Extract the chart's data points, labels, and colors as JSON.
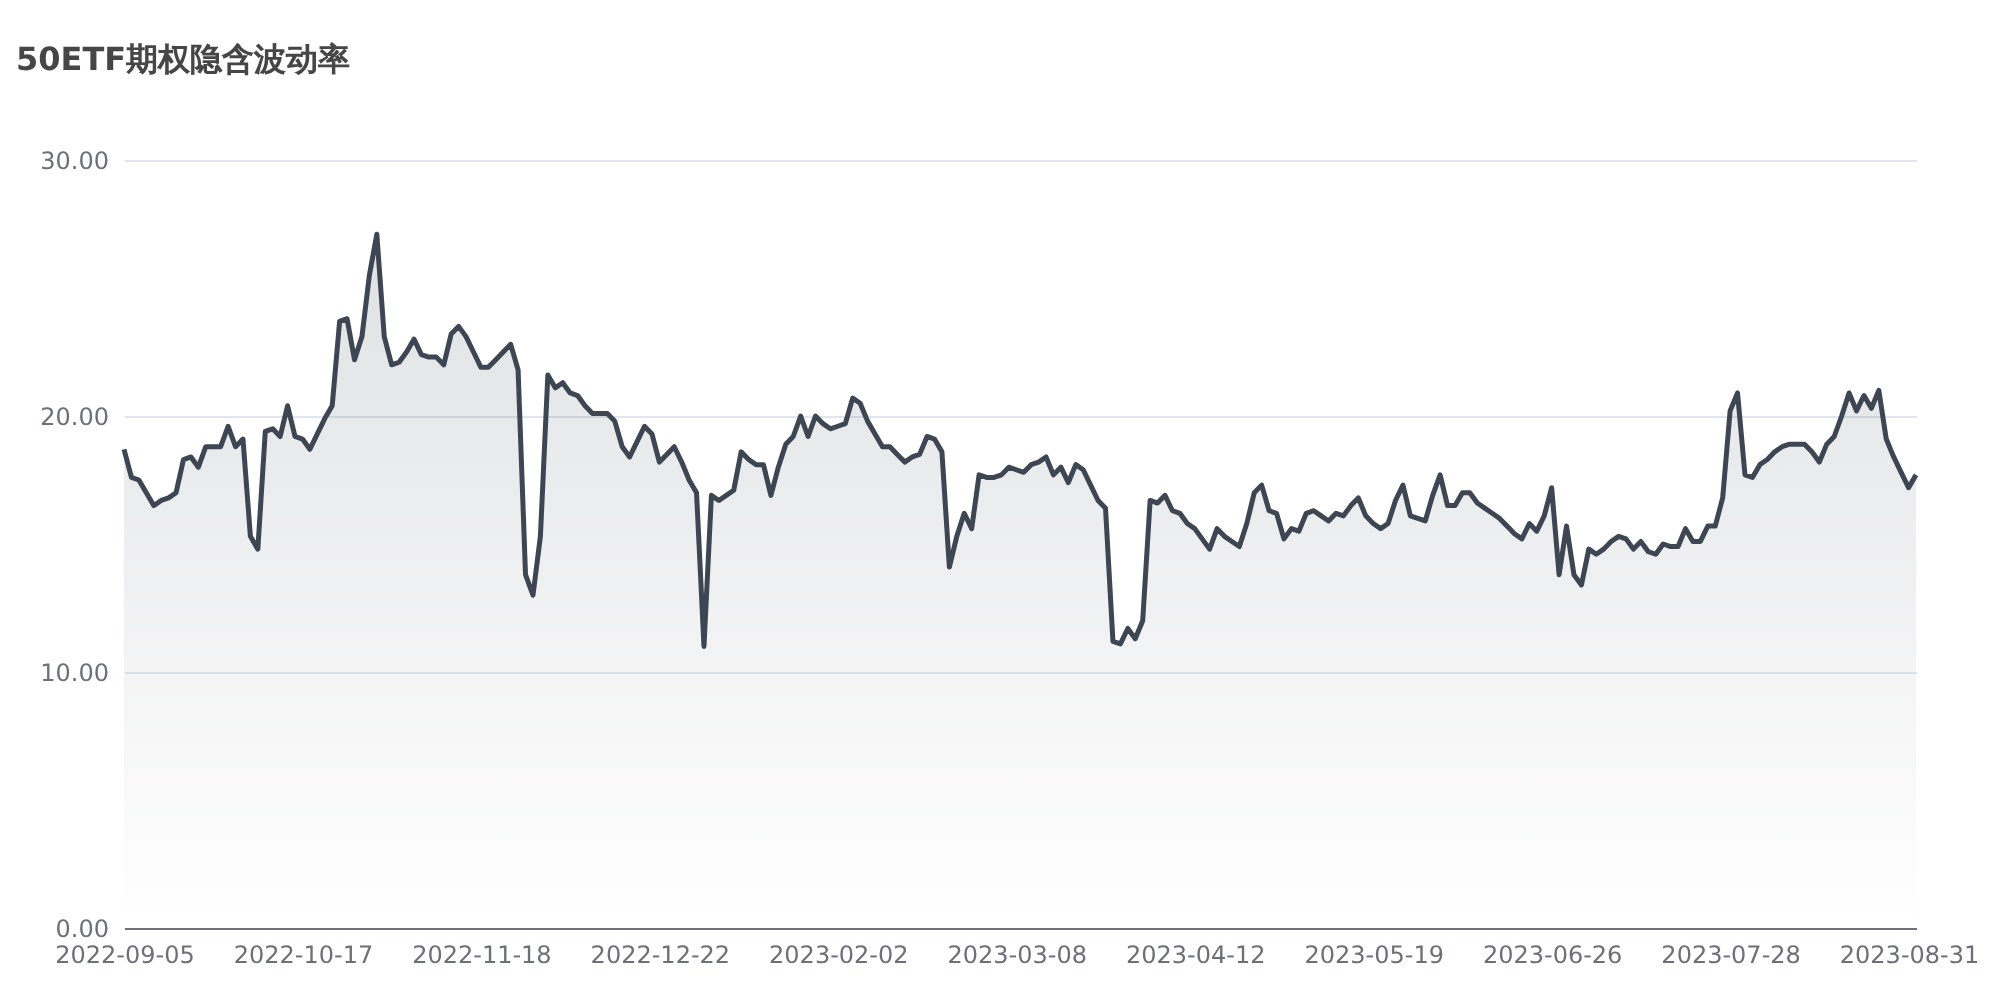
{
  "chart_data": {
    "type": "area",
    "title": "50ETF期权隐含波动率",
    "categories": [
      "2022-09-05",
      null,
      null,
      null,
      null,
      null,
      null,
      null,
      null,
      null,
      null,
      null,
      null,
      null,
      null,
      null,
      null,
      null,
      null,
      null,
      null,
      null,
      null,
      null,
      "2022-10-17",
      null,
      null,
      null,
      null,
      null,
      null,
      null,
      null,
      null,
      null,
      null,
      null,
      null,
      null,
      null,
      null,
      null,
      null,
      null,
      null,
      null,
      null,
      null,
      "2022-11-18",
      null,
      null,
      null,
      null,
      null,
      null,
      null,
      null,
      null,
      null,
      null,
      null,
      null,
      null,
      null,
      null,
      null,
      null,
      null,
      null,
      null,
      null,
      null,
      "2022-12-22",
      null,
      null,
      null,
      null,
      null,
      null,
      null,
      null,
      null,
      null,
      null,
      null,
      null,
      null,
      null,
      null,
      null,
      null,
      null,
      null,
      null,
      null,
      null,
      "2023-02-02",
      null,
      null,
      null,
      null,
      null,
      null,
      null,
      null,
      null,
      null,
      null,
      null,
      null,
      null,
      null,
      null,
      null,
      null,
      null,
      null,
      null,
      null,
      null,
      "2023-03-08",
      null,
      null,
      null,
      null,
      null,
      null,
      null,
      null,
      null,
      null,
      null,
      null,
      null,
      null,
      null,
      null,
      null,
      null,
      null,
      null,
      null,
      null,
      null,
      "2023-04-12",
      null,
      null,
      null,
      null,
      null,
      null,
      null,
      null,
      null,
      null,
      null,
      null,
      null,
      null,
      null,
      null,
      null,
      null,
      null,
      null,
      null,
      null,
      null,
      "2023-05-19",
      null,
      null,
      null,
      null,
      null,
      null,
      null,
      null,
      null,
      null,
      null,
      null,
      null,
      null,
      null,
      null,
      null,
      null,
      null,
      null,
      null,
      null,
      null,
      "2023-06-26",
      null,
      null,
      null,
      null,
      null,
      null,
      null,
      null,
      null,
      null,
      null,
      null,
      null,
      null,
      null,
      null,
      null,
      null,
      null,
      null,
      null,
      null,
      null,
      "2023-07-28",
      null,
      null,
      null,
      null,
      null,
      null,
      null,
      null,
      null,
      null,
      null,
      null,
      null,
      null,
      null,
      null,
      null,
      null,
      null,
      null,
      null,
      null,
      null,
      "2023-08-31",
      null
    ],
    "series": [
      {
        "color": "#3d4652",
        "values": [
          18.7,
          17.6,
          17.5,
          17.0,
          16.5,
          16.7,
          16.8,
          17.0,
          18.3,
          18.4,
          18.0,
          18.8,
          18.8,
          18.8,
          19.6,
          18.8,
          19.1,
          15.3,
          14.8,
          19.4,
          19.5,
          19.2,
          20.4,
          19.2,
          19.1,
          18.7,
          19.3,
          19.9,
          20.4,
          23.7,
          23.8,
          22.2,
          23.1,
          25.5,
          27.1,
          23.1,
          22.0,
          22.1,
          22.5,
          23.0,
          22.4,
          22.3,
          22.3,
          22.0,
          23.2,
          23.5,
          23.1,
          22.5,
          21.9,
          21.9,
          22.2,
          22.5,
          22.8,
          21.8,
          13.8,
          13.0,
          15.3,
          21.6,
          21.1,
          21.3,
          20.9,
          20.8,
          20.4,
          20.1,
          20.1,
          20.1,
          19.8,
          18.8,
          18.4,
          19.0,
          19.6,
          19.3,
          18.2,
          18.5,
          18.8,
          18.2,
          17.5,
          17.0,
          11.0,
          16.9,
          16.7,
          16.9,
          17.1,
          18.6,
          18.3,
          18.1,
          18.1,
          16.9,
          18.0,
          18.9,
          19.2,
          20.0,
          19.2,
          20.0,
          19.7,
          19.5,
          19.6,
          19.7,
          20.7,
          20.5,
          19.8,
          19.3,
          18.8,
          18.8,
          18.5,
          18.2,
          18.4,
          18.5,
          19.2,
          19.1,
          18.6,
          14.1,
          15.3,
          16.2,
          15.6,
          17.7,
          17.6,
          17.6,
          17.7,
          18.0,
          17.9,
          17.8,
          18.1,
          18.2,
          18.4,
          17.7,
          18.0,
          17.4,
          18.1,
          17.9,
          17.3,
          16.7,
          16.4,
          11.2,
          11.1,
          11.7,
          11.3,
          12.0,
          16.7,
          16.6,
          16.9,
          16.3,
          16.2,
          15.8,
          15.6,
          15.2,
          14.8,
          15.6,
          15.3,
          15.1,
          14.9,
          15.8,
          17.0,
          17.3,
          16.3,
          16.2,
          15.2,
          15.6,
          15.5,
          16.2,
          16.3,
          16.1,
          15.9,
          16.2,
          16.1,
          16.5,
          16.8,
          16.1,
          15.8,
          15.6,
          15.8,
          16.7,
          17.3,
          16.1,
          16.0,
          15.9,
          16.9,
          17.7,
          16.5,
          16.5,
          17.0,
          17.0,
          16.6,
          16.4,
          16.2,
          16.0,
          15.7,
          15.4,
          15.2,
          15.8,
          15.5,
          16.1,
          17.2,
          13.8,
          15.7,
          13.8,
          13.4,
          14.8,
          14.6,
          14.8,
          15.1,
          15.3,
          15.2,
          14.8,
          15.1,
          14.7,
          14.6,
          15.0,
          14.9,
          14.9,
          15.6,
          15.1,
          15.1,
          15.7,
          15.7,
          16.8,
          20.2,
          20.9,
          17.7,
          17.6,
          18.1,
          18.3,
          18.6,
          18.8,
          18.9,
          18.9,
          18.9,
          18.6,
          18.2,
          18.9,
          19.2,
          20.0,
          20.9,
          20.2,
          20.8,
          20.3,
          21.0,
          19.1,
          18.4,
          17.8,
          17.2,
          17.7
        ]
      }
    ],
    "ylim": [
      0,
      30
    ],
    "yticks": [
      {
        "value": 0,
        "label": "0.00"
      },
      {
        "value": 10,
        "label": "10.00"
      },
      {
        "value": 20,
        "label": "20.00"
      },
      {
        "value": 30,
        "label": "30.00"
      }
    ],
    "grid": "y"
  }
}
